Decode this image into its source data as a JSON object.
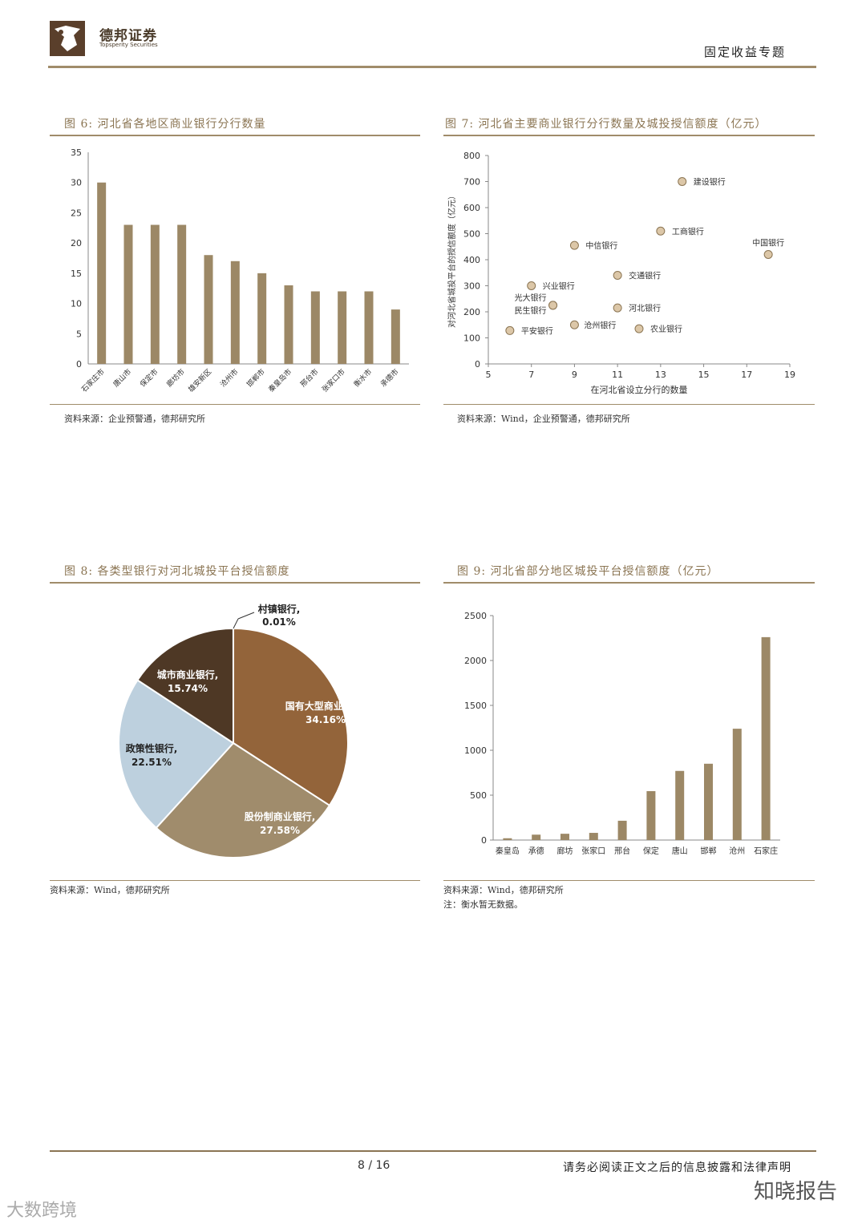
{
  "header": {
    "brand_cn": "德邦证券",
    "brand_en": "Topsperity Securities",
    "section": "固定收益专题"
  },
  "fig6": {
    "title": "图 6: 河北省各地区商业银行分行数量",
    "source": "资料来源：企业预警通，德邦研究所"
  },
  "fig7": {
    "title": "图 7: 河北省主要商业银行分行数量及城投授信额度（亿元）",
    "source": "资料来源：Wind，企业预警通，德邦研究所"
  },
  "fig8": {
    "title": "图 8: 各类型银行对河北城投平台授信额度",
    "source": "资料来源：Wind，德邦研究所"
  },
  "fig9": {
    "title": "图 9: 河北省部分地区城投平台授信额度（亿元）",
    "source": "资料来源：Wind，德邦研究所",
    "note": "注：衡水暂无数据。"
  },
  "footer": {
    "page": "8 / 16",
    "disclaimer": "请务必阅读正文之后的信息披露和法律声明",
    "watermark_right": "知晓报告",
    "watermark_left": "大数跨境"
  },
  "chart_data": [
    {
      "id": "fig6",
      "type": "bar",
      "categories": [
        "石家庄市",
        "唐山市",
        "保定市",
        "廊坊市",
        "雄安新区",
        "沧州市",
        "邯郸市",
        "秦皇岛市",
        "邢台市",
        "张家口市",
        "衡水市",
        "承德市"
      ],
      "values": [
        30,
        23,
        23,
        23,
        18,
        17,
        15,
        13,
        12,
        12,
        12,
        9
      ],
      "ylim": [
        0,
        35
      ],
      "yticks": [
        0,
        5,
        10,
        15,
        20,
        25,
        30,
        35
      ],
      "color": "#9c8866"
    },
    {
      "id": "fig7",
      "type": "scatter",
      "xlabel": "在河北省设立分行的数量",
      "ylabel": "对河北省城投平台的授信额度（亿元）",
      "xlim": [
        5,
        19
      ],
      "ylim": [
        0,
        800
      ],
      "xticks": [
        5,
        7,
        9,
        11,
        13,
        15,
        17,
        19
      ],
      "yticks": [
        0,
        100,
        200,
        300,
        400,
        500,
        600,
        700,
        800
      ],
      "points": [
        {
          "name": "建设银行",
          "x": 14,
          "y": 700
        },
        {
          "name": "工商银行",
          "x": 13,
          "y": 510
        },
        {
          "name": "中国银行",
          "x": 18,
          "y": 420
        },
        {
          "name": "中信银行",
          "x": 9,
          "y": 455
        },
        {
          "name": "交通银行",
          "x": 11,
          "y": 340
        },
        {
          "name": "兴业银行",
          "x": 7,
          "y": 300
        },
        {
          "name": "光大银行",
          "x": 8,
          "y": 225
        },
        {
          "name": "民生银行",
          "x": 8,
          "y": 225
        },
        {
          "name": "河北银行",
          "x": 11,
          "y": 215
        },
        {
          "name": "沧州银行",
          "x": 9,
          "y": 150
        },
        {
          "name": "农业银行",
          "x": 12,
          "y": 135
        },
        {
          "name": "平安银行",
          "x": 6,
          "y": 128
        }
      ]
    },
    {
      "id": "fig8",
      "type": "pie",
      "slices": [
        {
          "name": "国有大型商业银行,",
          "value": 34.16,
          "label": "34.16%",
          "color": "#93643a"
        },
        {
          "name": "股份制商业银行,",
          "value": 27.58,
          "label": "27.58%",
          "color": "#a08c6c"
        },
        {
          "name": "政策性银行,",
          "value": 22.51,
          "label": "22.51%",
          "color": "#bdd0de"
        },
        {
          "name": "城市商业银行,",
          "value": 15.74,
          "label": "15.74%",
          "color": "#4e3825"
        },
        {
          "name": "村镇银行,",
          "value": 0.01,
          "label": "0.01%",
          "color": "#888888"
        }
      ]
    },
    {
      "id": "fig9",
      "type": "bar",
      "categories": [
        "秦皇岛",
        "承德",
        "廊坊",
        "张家口",
        "邢台",
        "保定",
        "唐山",
        "邯郸",
        "沧州",
        "石家庄"
      ],
      "values": [
        20,
        60,
        70,
        80,
        215,
        545,
        770,
        850,
        1240,
        2260
      ],
      "ylim": [
        0,
        2500
      ],
      "yticks": [
        0,
        500,
        1000,
        1500,
        2000,
        2500
      ],
      "color": "#9c8866"
    }
  ]
}
